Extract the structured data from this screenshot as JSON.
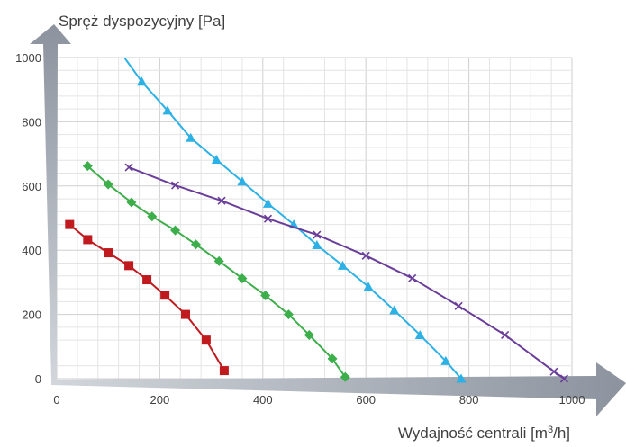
{
  "chart_data": {
    "type": "line",
    "title": "",
    "ylabel": "Spręż dyspozycyjny [Pa]",
    "xlabel": {
      "prefix": "Wydajność centrali [m",
      "sup": "3",
      "suffix": "/h]"
    },
    "xlim": [
      0,
      1000
    ],
    "ylim": [
      0,
      1000
    ],
    "x_ticks": [
      "0",
      "200",
      "400",
      "600",
      "800",
      "1000"
    ],
    "y_ticks": [
      "0",
      "200",
      "400",
      "600",
      "800",
      "1000"
    ],
    "grid": true,
    "legend": "none",
    "series": [
      {
        "color": "#c0191e",
        "marker": "square",
        "points": [
          [
            25,
            480
          ],
          [
            60,
            433
          ],
          [
            100,
            392
          ],
          [
            140,
            352
          ],
          [
            175,
            308
          ],
          [
            210,
            260
          ],
          [
            250,
            200
          ],
          [
            290,
            120
          ],
          [
            325,
            25
          ]
        ]
      },
      {
        "color": "#3cae4a",
        "marker": "diamond",
        "points": [
          [
            60,
            662
          ],
          [
            100,
            605
          ],
          [
            145,
            549
          ],
          [
            185,
            505
          ],
          [
            230,
            462
          ],
          [
            270,
            418
          ],
          [
            315,
            366
          ],
          [
            360,
            312
          ],
          [
            405,
            259
          ],
          [
            450,
            200
          ],
          [
            490,
            136
          ],
          [
            535,
            62
          ],
          [
            560,
            5
          ]
        ]
      },
      {
        "color": "#2cb1e6",
        "marker": "triangle",
        "points": [
          [
            120,
            1025
          ],
          [
            165,
            925
          ],
          [
            215,
            835
          ],
          [
            260,
            750
          ],
          [
            310,
            682
          ],
          [
            360,
            614
          ],
          [
            410,
            545
          ],
          [
            460,
            480
          ],
          [
            505,
            416
          ],
          [
            555,
            352
          ],
          [
            605,
            286
          ],
          [
            655,
            213
          ],
          [
            705,
            136
          ],
          [
            755,
            55
          ],
          [
            785,
            0
          ]
        ]
      },
      {
        "color": "#6a3d9a",
        "marker": "x",
        "points": [
          [
            140,
            658
          ],
          [
            230,
            602
          ],
          [
            320,
            554
          ],
          [
            410,
            498
          ],
          [
            505,
            448
          ],
          [
            600,
            383
          ],
          [
            690,
            313
          ],
          [
            780,
            226
          ],
          [
            870,
            136
          ],
          [
            965,
            22
          ],
          [
            985,
            0
          ]
        ]
      }
    ]
  }
}
